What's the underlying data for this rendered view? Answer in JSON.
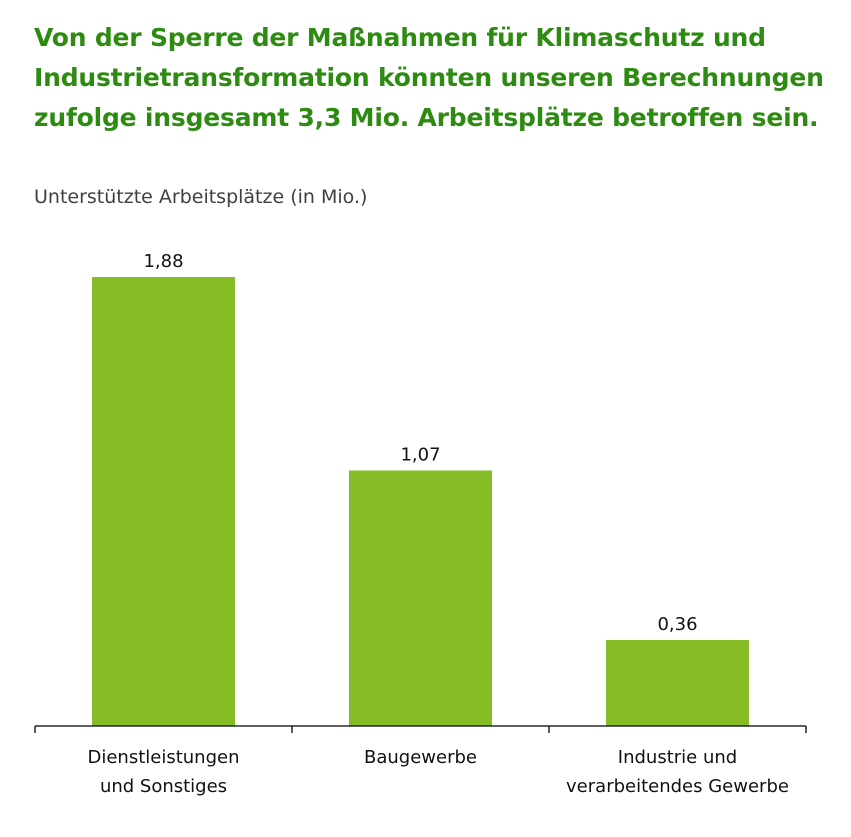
{
  "headline": "Von der Sperre der Maßnahmen für Klimaschutz und Industrietransformation könnten unseren Berechnungen zufolge insgesamt 3,3 Mio. Arbeitsplätze betroffen sein.",
  "colors": {
    "headline": "#2e8b12",
    "bar": "#86bc25",
    "axis": "#000000"
  },
  "chart_data": {
    "type": "bar",
    "title": "",
    "ylabel": "Unterstützte Arbeitsplätze (in Mio.)",
    "xlabel": "",
    "categories": [
      [
        "Dienstleistungen",
        "und Sonstiges"
      ],
      [
        "Baugewerbe"
      ],
      [
        "Industrie und",
        "verarbeitendes Gewerbe"
      ]
    ],
    "values": [
      1.88,
      1.07,
      0.36
    ],
    "value_labels": [
      "1,88",
      "1,07",
      "0,36"
    ],
    "ylim": [
      0,
      1.88
    ],
    "grid": false,
    "legend": "none"
  }
}
